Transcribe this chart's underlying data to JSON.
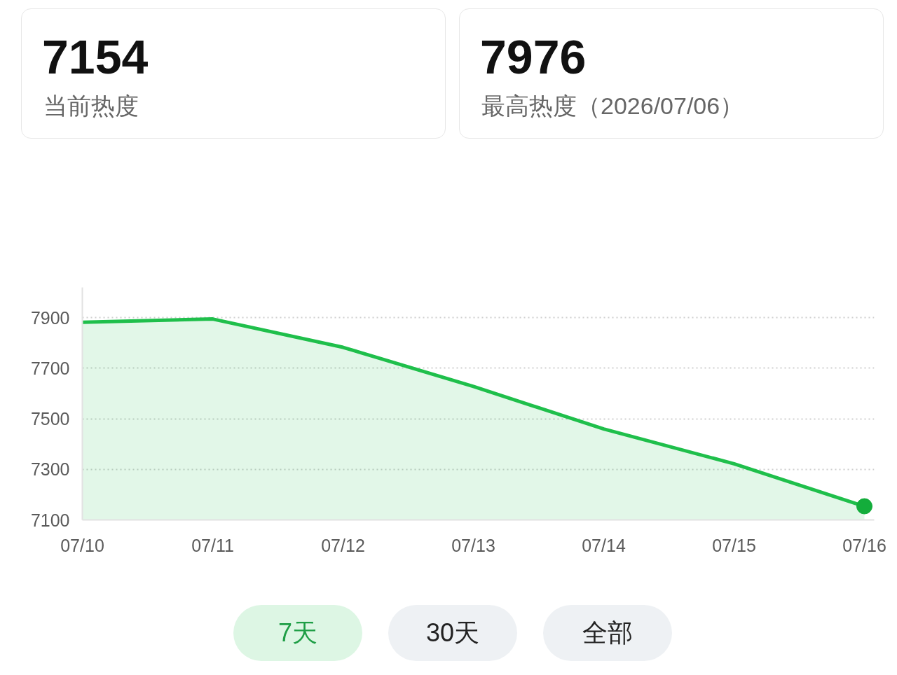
{
  "chart_data": {
    "type": "area",
    "categories": [
      "07/10",
      "07/11",
      "07/12",
      "07/13",
      "07/14",
      "07/15",
      "07/16"
    ],
    "series": [
      {
        "color": "#1fbf4b",
        "values": [
          7882,
          7895,
          7783,
          7628,
          7460,
          7322,
          7154
        ]
      },
      {
        "type": "scatter",
        "color": "#13ad3b",
        "x": [
          "07/16"
        ],
        "values": [
          7154
        ]
      }
    ],
    "ylim": [
      7100,
      8020
    ],
    "yticks": [
      7100,
      7300,
      7500,
      7700,
      7900
    ],
    "grid": "y",
    "annotations": [
      "7154",
      "当前热度",
      "7976",
      "最高热度（2026/07/06）",
      "7天",
      "30天",
      "全部"
    ]
  }
}
